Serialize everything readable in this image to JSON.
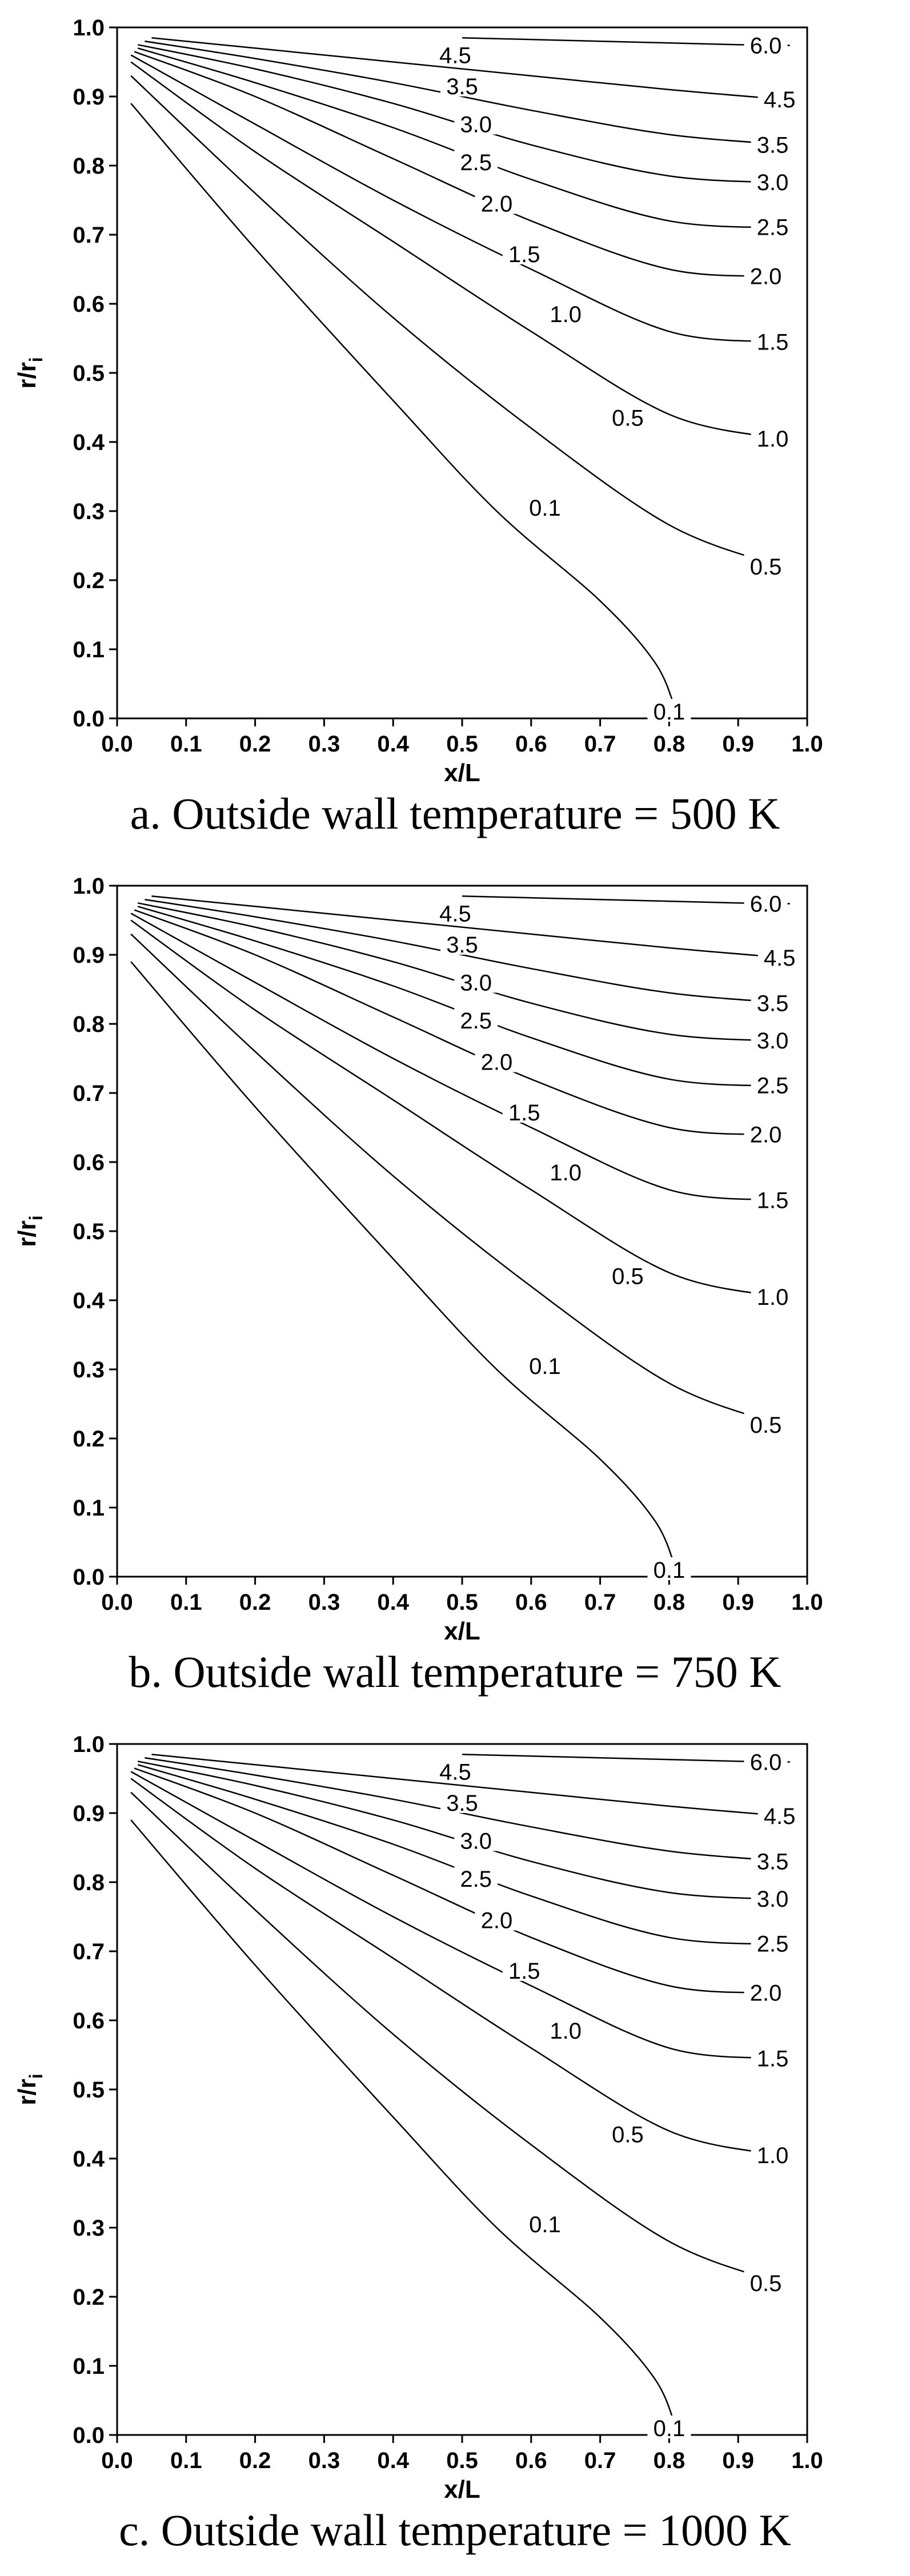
{
  "chart_data": [
    {
      "type": "line",
      "title": "",
      "caption": "a.   Outside wall temperature = 500 K",
      "xlabel": "x/L",
      "ylabel": "r/r",
      "ylabel_sub": "i",
      "xlim": [
        0.0,
        1.0
      ],
      "ylim": [
        0.0,
        1.0
      ],
      "xticks": [
        "0.0",
        "0.1",
        "0.2",
        "0.3",
        "0.4",
        "0.5",
        "0.6",
        "0.7",
        "0.8",
        "0.9",
        "1.0"
      ],
      "yticks": [
        "0.0",
        "0.1",
        "0.2",
        "0.3",
        "0.4",
        "0.5",
        "0.6",
        "0.7",
        "0.8",
        "0.9",
        "1.0"
      ],
      "grid": false,
      "series": [
        {
          "name": "6.0",
          "x": [
            0.5,
            0.7,
            0.9,
            0.975
          ],
          "y": [
            0.985,
            0.98,
            0.975,
            0.974
          ],
          "label_at": [
            0.94,
            0.974
          ]
        },
        {
          "name": "4.5",
          "x": [
            0.05,
            0.2,
            0.4,
            0.6,
            0.8,
            0.975
          ],
          "y": [
            0.985,
            0.97,
            0.95,
            0.93,
            0.91,
            0.895
          ],
          "label_at": [
            0.96,
            0.896
          ]
        },
        {
          "name": "3.5",
          "x": [
            0.04,
            0.2,
            0.4,
            0.6,
            0.8,
            0.975
          ],
          "y": [
            0.98,
            0.955,
            0.92,
            0.88,
            0.845,
            0.83
          ],
          "label_at": [
            0.95,
            0.83
          ]
        },
        {
          "name": "3.0",
          "x": [
            0.03,
            0.2,
            0.4,
            0.6,
            0.8,
            0.975
          ],
          "y": [
            0.975,
            0.94,
            0.89,
            0.83,
            0.785,
            0.775
          ],
          "label_at": [
            0.95,
            0.776
          ]
        },
        {
          "name": "2.5",
          "x": [
            0.03,
            0.2,
            0.4,
            0.6,
            0.8,
            0.975
          ],
          "y": [
            0.97,
            0.92,
            0.855,
            0.78,
            0.72,
            0.71
          ],
          "label_at": [
            0.95,
            0.711
          ]
        },
        {
          "name": "2.0",
          "x": [
            0.025,
            0.2,
            0.4,
            0.6,
            0.8,
            0.96
          ],
          "y": [
            0.965,
            0.9,
            0.81,
            0.72,
            0.65,
            0.64
          ],
          "label_at": [
            0.94,
            0.64
          ]
        },
        {
          "name": "1.5",
          "x": [
            0.02,
            0.2,
            0.4,
            0.6,
            0.8,
            0.96
          ],
          "y": [
            0.96,
            0.86,
            0.75,
            0.65,
            0.56,
            0.545
          ],
          "label_at": [
            0.95,
            0.545
          ]
        },
        {
          "name": "1.0",
          "x": [
            0.02,
            0.2,
            0.4,
            0.6,
            0.8,
            0.96
          ],
          "y": [
            0.95,
            0.82,
            0.69,
            0.56,
            0.44,
            0.405
          ],
          "label_at": [
            0.95,
            0.405
          ]
        },
        {
          "name": "0.5",
          "x": [
            0.02,
            0.2,
            0.4,
            0.6,
            0.8,
            0.96
          ],
          "y": [
            0.93,
            0.76,
            0.58,
            0.42,
            0.28,
            0.22
          ],
          "label_at": [
            0.94,
            0.22
          ]
        },
        {
          "name": "0.1",
          "x": [
            0.02,
            0.2,
            0.4,
            0.55,
            0.7,
            0.78,
            0.81
          ],
          "y": [
            0.89,
            0.68,
            0.46,
            0.3,
            0.17,
            0.08,
            0.01
          ],
          "label_at": [
            0.8,
            0.01
          ]
        }
      ],
      "inline_labels": [
        {
          "text": "4.5",
          "x": 0.49,
          "y": 0.96
        },
        {
          "text": "3.5",
          "x": 0.5,
          "y": 0.915
        },
        {
          "text": "3.0",
          "x": 0.52,
          "y": 0.86
        },
        {
          "text": "2.5",
          "x": 0.52,
          "y": 0.805
        },
        {
          "text": "2.0",
          "x": 0.55,
          "y": 0.745
        },
        {
          "text": "1.5",
          "x": 0.59,
          "y": 0.672
        },
        {
          "text": "1.0",
          "x": 0.65,
          "y": 0.585
        },
        {
          "text": "0.5",
          "x": 0.74,
          "y": 0.435
        },
        {
          "text": "0.1",
          "x": 0.62,
          "y": 0.305
        }
      ]
    },
    {
      "type": "line",
      "title": "",
      "caption": "b.   Outside wall temperature = 750 K",
      "xlabel": "x/L",
      "ylabel": "r/r",
      "ylabel_sub": "i",
      "xlim": [
        0.0,
        1.0
      ],
      "ylim": [
        0.0,
        1.0
      ],
      "xticks": [
        "0.0",
        "0.1",
        "0.2",
        "0.3",
        "0.4",
        "0.5",
        "0.6",
        "0.7",
        "0.8",
        "0.9",
        "1.0"
      ],
      "yticks": [
        "0.0",
        "0.1",
        "0.2",
        "0.3",
        "0.4",
        "0.5",
        "0.6",
        "0.7",
        "0.8",
        "0.9",
        "1.0"
      ],
      "grid": false,
      "series": [
        {
          "name": "6.0",
          "x": [
            0.5,
            0.7,
            0.9,
            0.975
          ],
          "y": [
            0.985,
            0.98,
            0.975,
            0.974
          ],
          "label_at": [
            0.94,
            0.974
          ]
        },
        {
          "name": "4.5",
          "x": [
            0.05,
            0.2,
            0.4,
            0.6,
            0.8,
            0.975
          ],
          "y": [
            0.985,
            0.97,
            0.95,
            0.93,
            0.91,
            0.895
          ],
          "label_at": [
            0.96,
            0.896
          ]
        },
        {
          "name": "3.5",
          "x": [
            0.04,
            0.2,
            0.4,
            0.6,
            0.8,
            0.975
          ],
          "y": [
            0.98,
            0.955,
            0.92,
            0.88,
            0.845,
            0.83
          ],
          "label_at": [
            0.95,
            0.83
          ]
        },
        {
          "name": "3.0",
          "x": [
            0.03,
            0.2,
            0.4,
            0.6,
            0.8,
            0.975
          ],
          "y": [
            0.975,
            0.94,
            0.89,
            0.83,
            0.785,
            0.775
          ],
          "label_at": [
            0.95,
            0.776
          ]
        },
        {
          "name": "2.5",
          "x": [
            0.03,
            0.2,
            0.4,
            0.6,
            0.8,
            0.975
          ],
          "y": [
            0.97,
            0.92,
            0.855,
            0.78,
            0.72,
            0.71
          ],
          "label_at": [
            0.95,
            0.711
          ]
        },
        {
          "name": "2.0",
          "x": [
            0.025,
            0.2,
            0.4,
            0.6,
            0.8,
            0.96
          ],
          "y": [
            0.965,
            0.9,
            0.81,
            0.72,
            0.65,
            0.64
          ],
          "label_at": [
            0.94,
            0.64
          ]
        },
        {
          "name": "1.5",
          "x": [
            0.02,
            0.2,
            0.4,
            0.6,
            0.8,
            0.96
          ],
          "y": [
            0.96,
            0.86,
            0.75,
            0.65,
            0.56,
            0.545
          ],
          "label_at": [
            0.95,
            0.545
          ]
        },
        {
          "name": "1.0",
          "x": [
            0.02,
            0.2,
            0.4,
            0.6,
            0.8,
            0.96
          ],
          "y": [
            0.95,
            0.82,
            0.69,
            0.56,
            0.44,
            0.405
          ],
          "label_at": [
            0.95,
            0.405
          ]
        },
        {
          "name": "0.5",
          "x": [
            0.02,
            0.2,
            0.4,
            0.6,
            0.8,
            0.96
          ],
          "y": [
            0.93,
            0.76,
            0.58,
            0.42,
            0.28,
            0.22
          ],
          "label_at": [
            0.94,
            0.22
          ]
        },
        {
          "name": "0.1",
          "x": [
            0.02,
            0.2,
            0.4,
            0.55,
            0.7,
            0.78,
            0.81
          ],
          "y": [
            0.89,
            0.68,
            0.46,
            0.3,
            0.17,
            0.08,
            0.01
          ],
          "label_at": [
            0.8,
            0.01
          ]
        }
      ],
      "inline_labels": [
        {
          "text": "4.5",
          "x": 0.49,
          "y": 0.96
        },
        {
          "text": "3.5",
          "x": 0.5,
          "y": 0.915
        },
        {
          "text": "3.0",
          "x": 0.52,
          "y": 0.86
        },
        {
          "text": "2.5",
          "x": 0.52,
          "y": 0.805
        },
        {
          "text": "2.0",
          "x": 0.55,
          "y": 0.745
        },
        {
          "text": "1.5",
          "x": 0.59,
          "y": 0.672
        },
        {
          "text": "1.0",
          "x": 0.65,
          "y": 0.585
        },
        {
          "text": "0.5",
          "x": 0.74,
          "y": 0.435
        },
        {
          "text": "0.1",
          "x": 0.62,
          "y": 0.305
        }
      ]
    },
    {
      "type": "line",
      "title": "",
      "caption": "c.   Outside wall temperature = 1000 K",
      "xlabel": "x/L",
      "ylabel": "r/r",
      "ylabel_sub": "i",
      "xlim": [
        0.0,
        1.0
      ],
      "ylim": [
        0.0,
        1.0
      ],
      "xticks": [
        "0.0",
        "0.1",
        "0.2",
        "0.3",
        "0.4",
        "0.5",
        "0.6",
        "0.7",
        "0.8",
        "0.9",
        "1.0"
      ],
      "yticks": [
        "0.0",
        "0.1",
        "0.2",
        "0.3",
        "0.4",
        "0.5",
        "0.6",
        "0.7",
        "0.8",
        "0.9",
        "1.0"
      ],
      "grid": false,
      "series": [
        {
          "name": "6.0",
          "x": [
            0.5,
            0.7,
            0.9,
            0.975
          ],
          "y": [
            0.985,
            0.98,
            0.975,
            0.974
          ],
          "label_at": [
            0.94,
            0.974
          ]
        },
        {
          "name": "4.5",
          "x": [
            0.05,
            0.2,
            0.4,
            0.6,
            0.8,
            0.975
          ],
          "y": [
            0.985,
            0.97,
            0.95,
            0.93,
            0.91,
            0.895
          ],
          "label_at": [
            0.96,
            0.896
          ]
        },
        {
          "name": "3.5",
          "x": [
            0.04,
            0.2,
            0.4,
            0.6,
            0.8,
            0.975
          ],
          "y": [
            0.98,
            0.955,
            0.92,
            0.88,
            0.845,
            0.83
          ],
          "label_at": [
            0.95,
            0.83
          ]
        },
        {
          "name": "3.0",
          "x": [
            0.03,
            0.2,
            0.4,
            0.6,
            0.8,
            0.975
          ],
          "y": [
            0.975,
            0.94,
            0.89,
            0.83,
            0.785,
            0.775
          ],
          "label_at": [
            0.95,
            0.776
          ]
        },
        {
          "name": "2.5",
          "x": [
            0.03,
            0.2,
            0.4,
            0.6,
            0.8,
            0.975
          ],
          "y": [
            0.97,
            0.92,
            0.855,
            0.78,
            0.72,
            0.71
          ],
          "label_at": [
            0.95,
            0.711
          ]
        },
        {
          "name": "2.0",
          "x": [
            0.025,
            0.2,
            0.4,
            0.6,
            0.8,
            0.96
          ],
          "y": [
            0.965,
            0.9,
            0.81,
            0.72,
            0.65,
            0.64
          ],
          "label_at": [
            0.94,
            0.64
          ]
        },
        {
          "name": "1.5",
          "x": [
            0.02,
            0.2,
            0.4,
            0.6,
            0.8,
            0.96
          ],
          "y": [
            0.96,
            0.86,
            0.75,
            0.65,
            0.56,
            0.545
          ],
          "label_at": [
            0.95,
            0.545
          ]
        },
        {
          "name": "1.0",
          "x": [
            0.02,
            0.2,
            0.4,
            0.6,
            0.8,
            0.96
          ],
          "y": [
            0.95,
            0.82,
            0.69,
            0.56,
            0.44,
            0.405
          ],
          "label_at": [
            0.95,
            0.405
          ]
        },
        {
          "name": "0.5",
          "x": [
            0.02,
            0.2,
            0.4,
            0.6,
            0.8,
            0.96
          ],
          "y": [
            0.93,
            0.76,
            0.58,
            0.42,
            0.28,
            0.22
          ],
          "label_at": [
            0.94,
            0.22
          ]
        },
        {
          "name": "0.1",
          "x": [
            0.02,
            0.2,
            0.4,
            0.55,
            0.7,
            0.78,
            0.81
          ],
          "y": [
            0.89,
            0.68,
            0.46,
            0.3,
            0.17,
            0.08,
            0.01
          ],
          "label_at": [
            0.8,
            0.01
          ]
        }
      ],
      "inline_labels": [
        {
          "text": "4.5",
          "x": 0.49,
          "y": 0.96
        },
        {
          "text": "3.5",
          "x": 0.5,
          "y": 0.915
        },
        {
          "text": "3.0",
          "x": 0.52,
          "y": 0.86
        },
        {
          "text": "2.5",
          "x": 0.52,
          "y": 0.805
        },
        {
          "text": "2.0",
          "x": 0.55,
          "y": 0.745
        },
        {
          "text": "1.5",
          "x": 0.59,
          "y": 0.672
        },
        {
          "text": "1.0",
          "x": 0.65,
          "y": 0.585
        },
        {
          "text": "0.5",
          "x": 0.74,
          "y": 0.435
        },
        {
          "text": "0.1",
          "x": 0.62,
          "y": 0.305
        }
      ]
    }
  ]
}
